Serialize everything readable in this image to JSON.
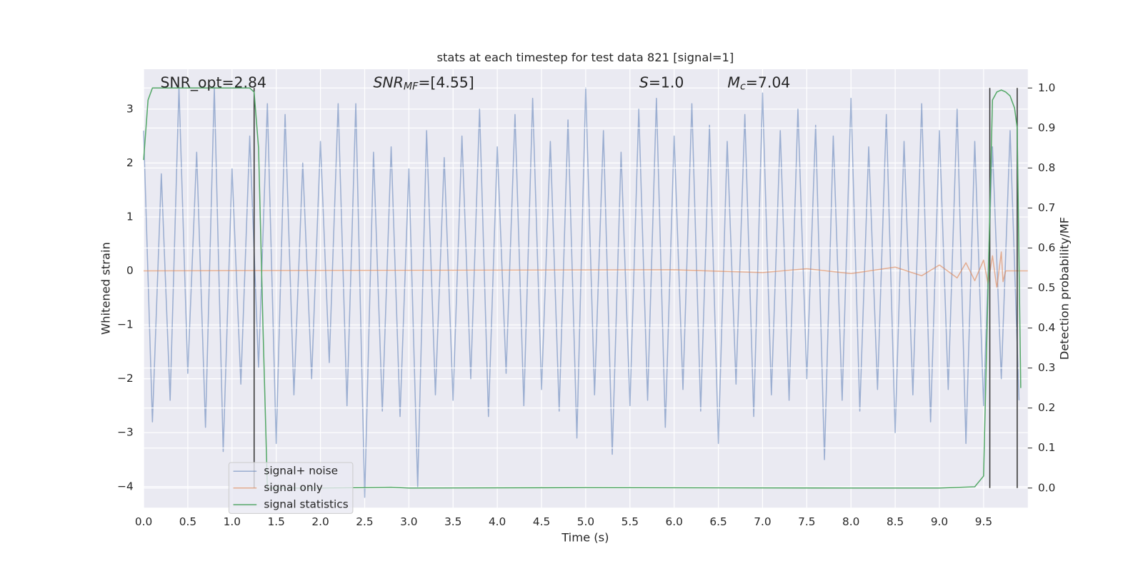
{
  "chart_data": {
    "type": "line",
    "title": "stats at each timestep for test data 821 [signal=1]",
    "xlabel": "Time (s)",
    "ylabel": "Whitened strain",
    "y2label": "Detection probability/MF",
    "xlim": [
      0,
      10
    ],
    "ylim": [
      -4.39,
      3.74
    ],
    "y2lim": [
      -0.049,
      1.047
    ],
    "xticks": [
      {
        "value": 0,
        "label": "0.0"
      },
      0.5,
      {
        "value": 1,
        "label": "1.0"
      },
      1.5,
      {
        "value": 2,
        "label": "2.0"
      },
      2.5,
      {
        "value": 3,
        "label": "3.0"
      },
      3.5,
      {
        "value": 4,
        "label": "4.0"
      },
      4.5,
      {
        "value": 5,
        "label": "5.0"
      },
      5.5,
      {
        "value": 6,
        "label": "6.0"
      },
      6.5,
      {
        "value": 7,
        "label": "7.0"
      },
      7.5,
      {
        "value": 8,
        "label": "8.0"
      },
      8.5,
      {
        "value": 9,
        "label": "9.0"
      },
      9.5
    ],
    "yticks": [
      {
        "value": -4,
        "label": "−4"
      },
      {
        "value": -3,
        "label": "−3"
      },
      {
        "value": -2,
        "label": "−2"
      },
      {
        "value": -1,
        "label": "−1"
      },
      0,
      1,
      2,
      3
    ],
    "y2ticks": [
      {
        "value": 0,
        "label": "0.0"
      },
      0.1,
      0.2,
      0.3,
      0.4,
      0.5,
      0.6,
      0.7,
      0.8,
      0.9,
      {
        "value": 1,
        "label": "1.0"
      }
    ],
    "grid": true,
    "legend": "lower left",
    "annotations": [
      [
        {
          "text": "SNR_opt=2.84"
        }
      ],
      [
        {
          "text": "SNR",
          "italic": true
        },
        {
          "text": "MF",
          "italic": true,
          "sub": true
        },
        {
          "text": "=[4.55]"
        }
      ],
      [
        {
          "text": "S",
          "italic": true
        },
        {
          "text": "=1.0"
        }
      ],
      [
        {
          "text": "M",
          "italic": true
        },
        {
          "text": "c",
          "italic": true,
          "sub": true
        },
        {
          "text": "=7.04"
        }
      ]
    ],
    "vlines": {
      "color": "#333333",
      "x": [
        1.25,
        9.57,
        9.88
      ],
      "range": [
        0,
        1
      ],
      "axis": "y2"
    },
    "series": [
      {
        "name": "signal+ noise",
        "color": "#4c72b0",
        "opacity": 0.5,
        "x": [
          0,
          0.1,
          0.2,
          0.3,
          0.4,
          0.5,
          0.6,
          0.7,
          0.8,
          0.9,
          1,
          1.1,
          1.2,
          1.3,
          1.4,
          1.5,
          1.6,
          1.7,
          1.8,
          1.9,
          2,
          2.1,
          2.2,
          2.3,
          2.4,
          2.5,
          2.6,
          2.7,
          2.8,
          2.9,
          3,
          3.1,
          3.2,
          3.3,
          3.4,
          3.5,
          3.6,
          3.7,
          3.8,
          3.9,
          4,
          4.1,
          4.2,
          4.3,
          4.4,
          4.5,
          4.6,
          4.7,
          4.8,
          4.9,
          5,
          5.1,
          5.2,
          5.3,
          5.4,
          5.5,
          5.6,
          5.7,
          5.8,
          5.9,
          6,
          6.1,
          6.2,
          6.3,
          6.4,
          6.5,
          6.6,
          6.7,
          6.8,
          6.9,
          7,
          7.1,
          7.2,
          7.3,
          7.4,
          7.5,
          7.6,
          7.7,
          7.8,
          7.9,
          8,
          8.1,
          8.2,
          8.3,
          8.4,
          8.5,
          8.6,
          8.7,
          8.8,
          8.9,
          9,
          9.1,
          9.2,
          9.3,
          9.4,
          9.5,
          9.6,
          9.7,
          9.8,
          9.9
        ],
        "values": [
          2.6,
          -2.8,
          1.8,
          -2.4,
          3.4,
          -1.9,
          2.2,
          -2.9,
          3.4,
          -3.35,
          1.9,
          -2.1,
          2.5,
          -1.8,
          3.1,
          -3.2,
          2.9,
          -2.3,
          2.0,
          -2.0,
          2.4,
          -1.7,
          3.1,
          -2.5,
          3.1,
          -4.2,
          2.2,
          -2.6,
          2.3,
          -2.7,
          1.9,
          -4.0,
          2.6,
          -2.3,
          2.1,
          -2.4,
          2.5,
          -2.0,
          3.0,
          -2.7,
          2.3,
          -1.9,
          2.9,
          -2.5,
          3.2,
          -2.2,
          2.4,
          -2.6,
          2.8,
          -3.1,
          3.4,
          -2.3,
          2.6,
          -3.4,
          2.2,
          -2.5,
          3.0,
          -2.4,
          3.2,
          -2.9,
          2.5,
          -2.2,
          3.1,
          -2.6,
          2.7,
          -3.2,
          2.4,
          -2.1,
          2.9,
          -2.7,
          3.3,
          -2.3,
          2.6,
          -2.4,
          3.0,
          -2.0,
          2.7,
          -3.5,
          2.5,
          -2.4,
          3.2,
          -2.6,
          2.3,
          -2.2,
          2.9,
          -3.0,
          2.4,
          -2.3,
          3.1,
          -2.8,
          2.6,
          -2.2,
          3.0,
          -3.2,
          2.4,
          -2.5,
          2.3,
          -2.0,
          2.6,
          -2.4
        ]
      },
      {
        "name": "signal only",
        "color": "#dd8452",
        "opacity": 0.6,
        "x": [
          0,
          6,
          7,
          7.5,
          8,
          8.5,
          8.8,
          9,
          9.2,
          9.3,
          9.4,
          9.5,
          9.55,
          9.6,
          9.65,
          9.7,
          9.72,
          9.75,
          10
        ],
        "values": [
          0,
          0.02,
          -0.03,
          0.04,
          -0.05,
          0.07,
          -0.09,
          0.11,
          -0.13,
          0.15,
          -0.18,
          0.2,
          -0.24,
          0.28,
          -0.32,
          0.35,
          -0.2,
          0,
          0
        ]
      },
      {
        "name": "signal statistics",
        "color": "#55a868",
        "opacity": 1,
        "axis": "y2",
        "x": [
          0,
          0.05,
          0.1,
          0.2,
          0.5,
          1.0,
          1.2,
          1.25,
          1.3,
          1.35,
          1.4,
          2,
          2.8,
          3,
          5,
          8,
          9,
          9.4,
          9.5,
          9.55,
          9.6,
          9.65,
          9.7,
          9.75,
          9.8,
          9.85,
          9.88,
          9.92
        ],
        "values": [
          0.82,
          0.97,
          1.0,
          1.0,
          1.0,
          1.0,
          1.0,
          0.99,
          0.85,
          0.4,
          0.0,
          0.0,
          0.002,
          0.0,
          0.001,
          0.0,
          0.0,
          0.003,
          0.03,
          0.5,
          0.97,
          0.99,
          0.995,
          0.99,
          0.98,
          0.95,
          0.9,
          0.25
        ]
      }
    ]
  }
}
